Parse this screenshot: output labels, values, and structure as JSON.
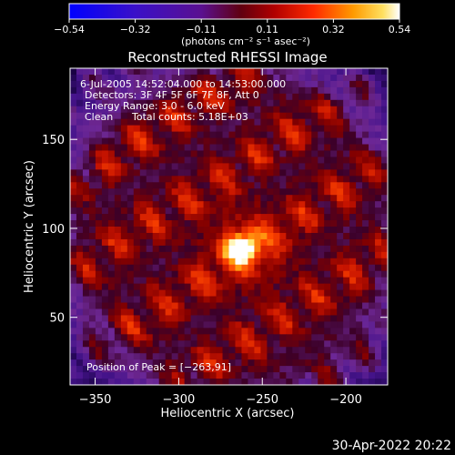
{
  "colorbar": {
    "ticks": [
      "-0.54",
      "-0.32",
      "-0.11",
      "0.11",
      "0.32",
      "0.54"
    ],
    "unit_label": "(photons cm⁻² s⁻¹ asec⁻²)"
  },
  "chart_data": {
    "type": "heatmap",
    "title": "Reconstructed RHESSI Image",
    "xlabel": "Heliocentric X (arcsec)",
    "ylabel": "Heliocentric Y (arcsec)",
    "xlim": [
      -365,
      -175
    ],
    "ylim": [
      12,
      190
    ],
    "xticks": [
      -350,
      -300,
      -250,
      -200
    ],
    "yticks": [
      50,
      100,
      150
    ],
    "xtick_labels": [
      "−350",
      "−300",
      "−250",
      "−200"
    ],
    "ytick_labels": [
      "50",
      "100",
      "150"
    ],
    "color_range": [
      -0.54,
      0.54
    ],
    "colormap": "rhessi_std",
    "peak": {
      "x": -263,
      "y": 91
    },
    "annotations": {
      "time": "6-Jul-2005 14:52:04.000 to 14:53:00.000",
      "detectors": "Detectors: 3F 4F 5F 6F 7F 8F, Att 0",
      "energy": "Energy Range: 3.0 - 6.0 keV",
      "method": "Clean",
      "counts": "Total counts: 5.18E+03",
      "peak_label": "Position of Peak = [−263,91]"
    }
  },
  "footer_date": "30-Apr-2022 20:22"
}
